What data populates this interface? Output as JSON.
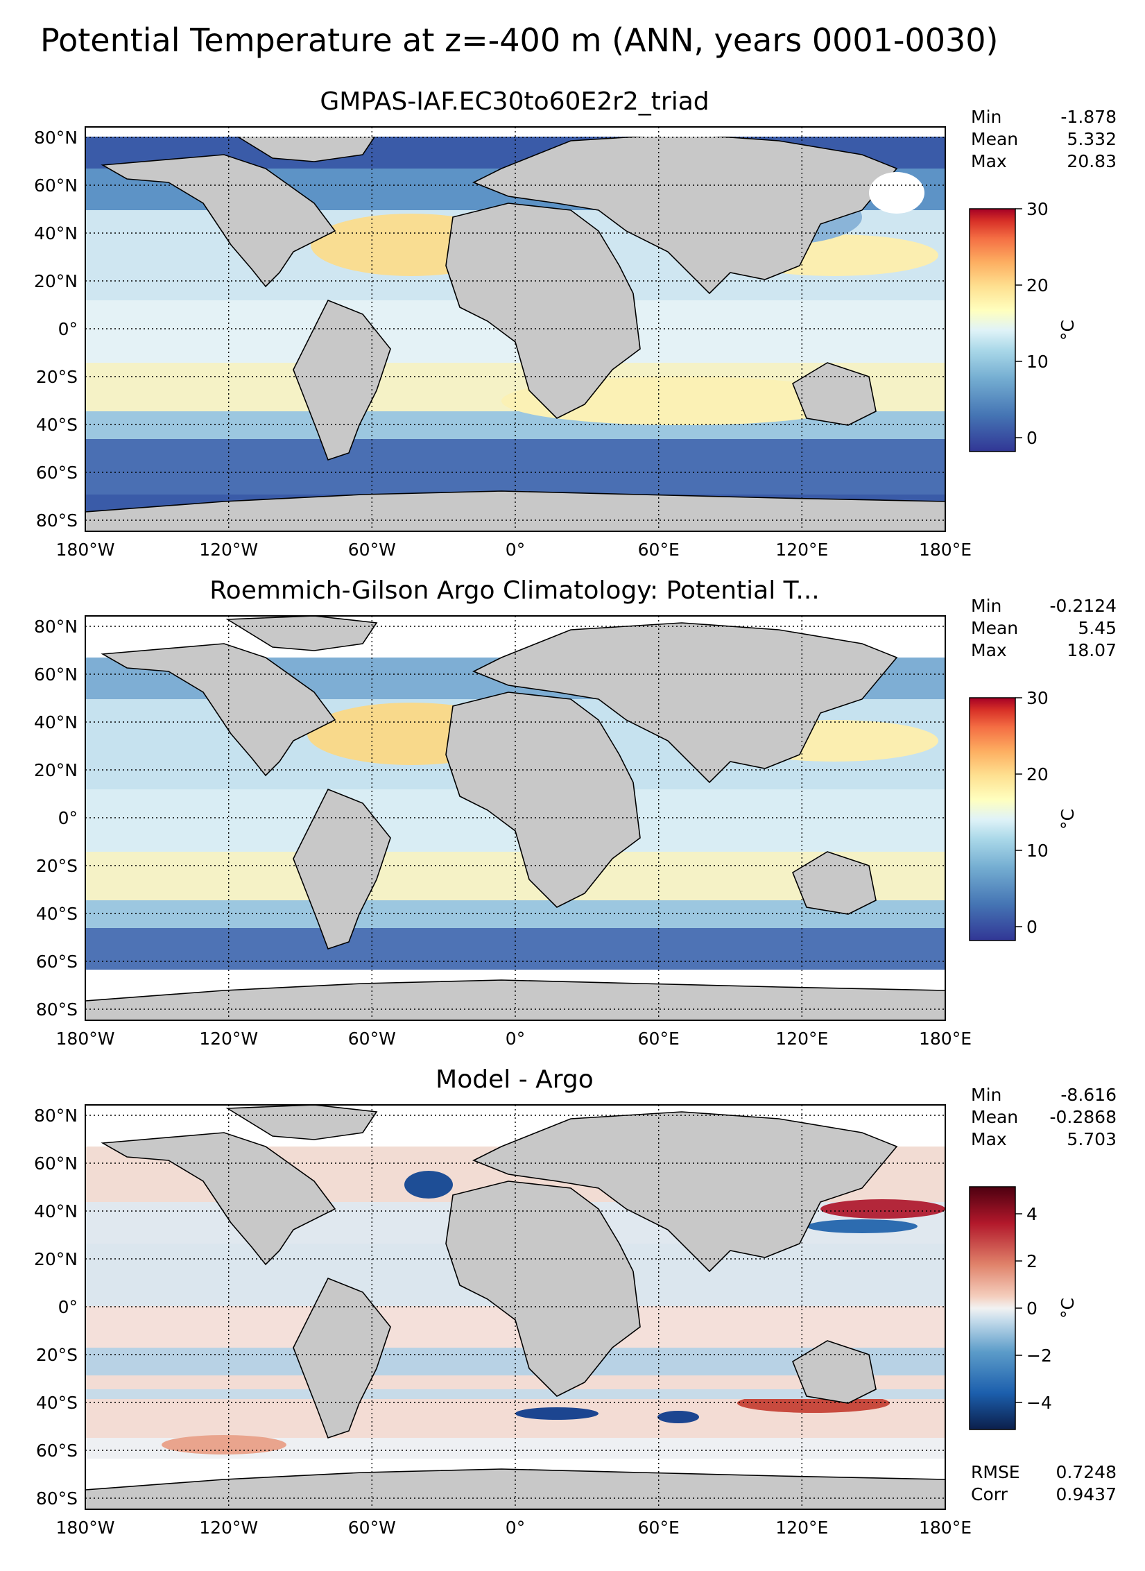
{
  "figure": {
    "suptitle": "Potential Temperature at z=-400 m (ANN, years 0001-0030)"
  },
  "lon_ticks": [
    "180°W",
    "120°W",
    "60°W",
    "0°",
    "60°E",
    "120°E",
    "180°E"
  ],
  "lat_ticks": [
    "80°N",
    "60°N",
    "40°N",
    "20°N",
    "0°",
    "20°S",
    "40°S",
    "60°S",
    "80°S"
  ],
  "colors": {
    "land": "#c8c8c8",
    "ocean_cold": "#3a5ba8",
    "ocean_cool": "#6fa6d0",
    "ocean_mild": "#d7ecf4",
    "ocean_warm": "#fbf0b0",
    "ocean_hot": "#f6c56f"
  },
  "panels": [
    {
      "title": "GMPAS-IAF.EC30to60E2r2_triad",
      "stats": [
        {
          "label": "Min",
          "value": "-1.878"
        },
        {
          "label": "Mean",
          "value": "5.332"
        },
        {
          "label": "Max",
          "value": "20.83"
        }
      ],
      "colorbar": {
        "ticks": [
          "30",
          "20",
          "10",
          "0"
        ],
        "unit": "°C",
        "cmap": "RdYlBu_r"
      }
    },
    {
      "title": "Roemmich-Gilson Argo Climatology: Potential T...",
      "stats": [
        {
          "label": "Min",
          "value": "-0.2124"
        },
        {
          "label": "Mean",
          "value": "5.45"
        },
        {
          "label": "Max",
          "value": "18.07"
        }
      ],
      "colorbar": {
        "ticks": [
          "30",
          "20",
          "10",
          "0"
        ],
        "unit": "°C",
        "cmap": "RdYlBu_r"
      }
    },
    {
      "title": "Model - Argo",
      "stats": [
        {
          "label": "Min",
          "value": "-8.616"
        },
        {
          "label": "Mean",
          "value": "-0.2868"
        },
        {
          "label": "Max",
          "value": "5.703"
        }
      ],
      "colorbar": {
        "ticks": [
          "4",
          "2",
          "0",
          "−2",
          "−4"
        ],
        "unit": "°C",
        "cmap": "RdBu_r"
      },
      "skill": [
        {
          "label": "RMSE",
          "value": "0.7248"
        },
        {
          "label": "Corr",
          "value": "0.9437"
        }
      ]
    }
  ]
}
